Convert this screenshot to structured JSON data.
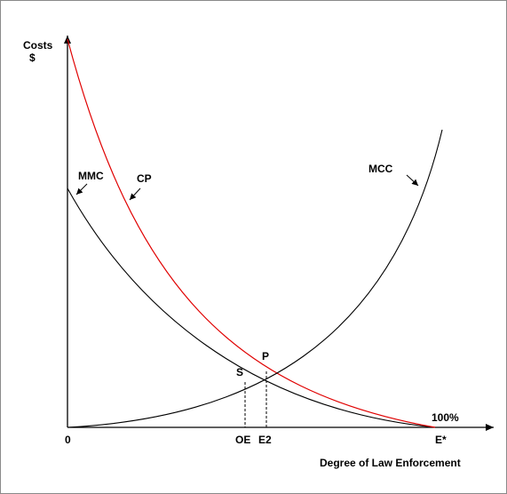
{
  "diagram": {
    "y_axis_label_line1": "Costs",
    "y_axis_label_line2": "$",
    "x_axis_label": "Degree of Law Enforcement",
    "origin_label": "0",
    "tick_oe": "OE",
    "tick_e2": "E2",
    "tick_estar": "E*",
    "percent_label": "100%",
    "curve_mmc": "MMC",
    "curve_cp": "CP",
    "curve_mcc": "MCC",
    "point_s": "S",
    "point_p": "P",
    "colors": {
      "axes": "#000000",
      "mmc": "#000000",
      "mcc": "#000000",
      "cp": "#e00000"
    }
  }
}
